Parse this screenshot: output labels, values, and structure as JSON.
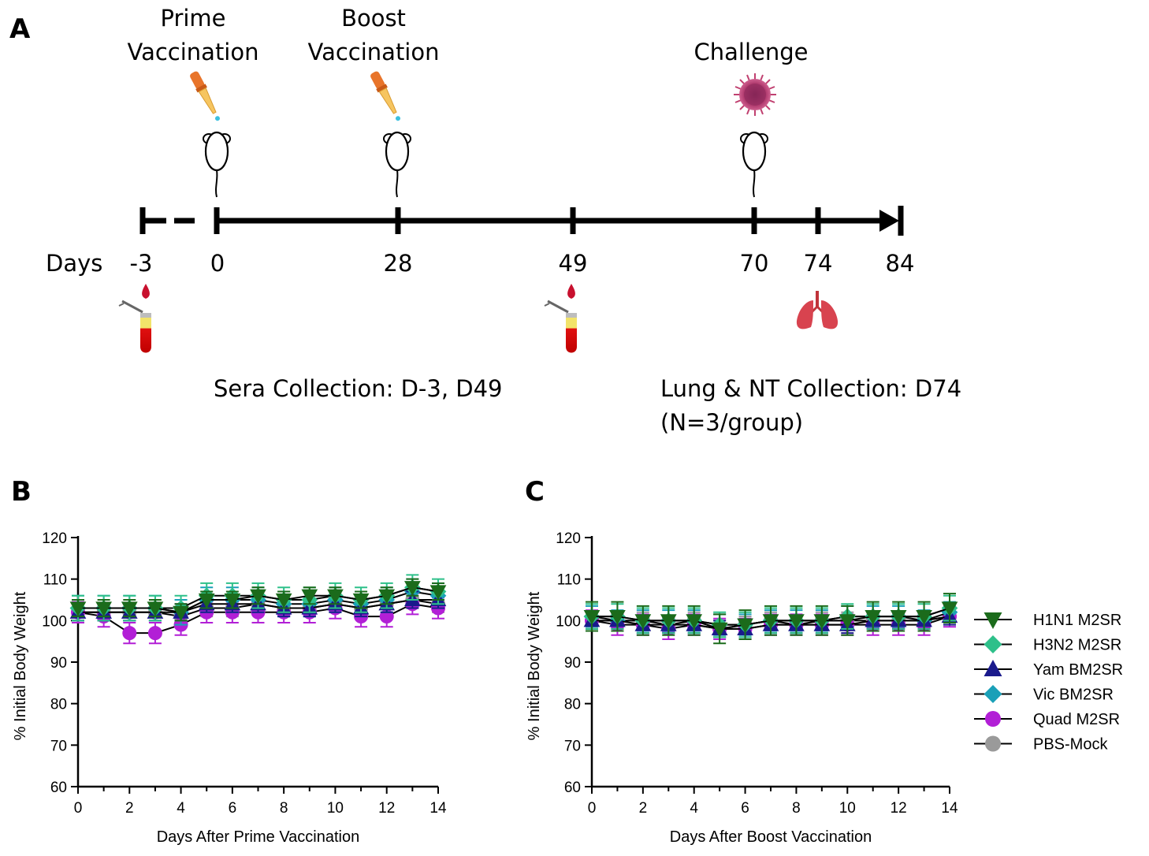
{
  "panel_a": {
    "letter": "A",
    "prime_label_1": "Prime",
    "prime_label_2": "Vaccination",
    "boost_label_1": "Boost",
    "boost_label_2": "Vaccination",
    "challenge_label": "Challenge",
    "days_label": "Days",
    "day_ticks": [
      "-3",
      "0",
      "28",
      "49",
      "70",
      "74",
      "84"
    ],
    "sera_note": "Sera Collection: D-3, D49",
    "lung_note_1": "Lung & NT Collection: D74",
    "lung_note_2": "(N=3/group)"
  },
  "colors": {
    "h1n1": "#1b6b1b",
    "h3n2": "#2ec08a",
    "yam": "#1a1a8c",
    "vic": "#1aa0b8",
    "quad": "#b21fd6",
    "mock": "#9a9a9a",
    "line": "#000000"
  },
  "chart_data": [
    {
      "panel": "B",
      "type": "line",
      "title": "",
      "xlabel": "Days After Prime Vaccination",
      "ylabel": "% Initial Body Weight",
      "xlim": [
        0,
        14
      ],
      "ylim": [
        60,
        120
      ],
      "xticks": [
        0,
        2,
        4,
        6,
        8,
        10,
        12,
        14
      ],
      "yticks": [
        60,
        70,
        80,
        90,
        100,
        110,
        120
      ],
      "x": [
        0,
        1,
        2,
        3,
        4,
        5,
        6,
        7,
        8,
        9,
        10,
        11,
        12,
        13,
        14
      ],
      "series": [
        {
          "name": "PBS-Mock",
          "key": "mock",
          "marker": "circle",
          "values": [
            102,
            102,
            102,
            102,
            101,
            103,
            103,
            104,
            103,
            103,
            104,
            103,
            104,
            105,
            104
          ],
          "err": 2
        },
        {
          "name": "Quad M2SR",
          "key": "quad",
          "marker": "circle",
          "values": [
            102,
            101,
            97,
            97,
            99,
            102,
            102,
            102,
            102,
            102,
            103,
            101,
            101,
            104,
            103
          ],
          "err": 2.5
        },
        {
          "name": "Vic BM2SR",
          "key": "vic",
          "marker": "diamond",
          "values": [
            103,
            103,
            103,
            103,
            102,
            105,
            105,
            105,
            104,
            104,
            105,
            104,
            105,
            107,
            106
          ],
          "err": 3
        },
        {
          "name": "Yam BM2SR",
          "key": "yam",
          "marker": "triangle-up",
          "values": [
            102,
            102,
            102,
            102,
            102,
            104,
            104,
            104,
            103,
            103,
            104,
            103,
            104,
            105,
            105
          ],
          "err": 2
        },
        {
          "name": "H3N2 M2SR",
          "key": "h3n2",
          "marker": "diamond",
          "values": [
            103,
            103,
            103,
            103,
            103,
            106,
            106,
            106,
            105,
            105,
            106,
            105,
            106,
            108,
            107
          ],
          "err": 3
        },
        {
          "name": "H1N1 M2SR",
          "key": "h1n1",
          "marker": "triangle-down",
          "values": [
            103,
            103,
            103,
            103,
            102,
            105,
            105,
            106,
            105,
            106,
            106,
            105,
            106,
            108,
            107
          ],
          "err": 2
        }
      ]
    },
    {
      "panel": "C",
      "type": "line",
      "title": "",
      "xlabel": "Days After Boost Vaccination",
      "ylabel": "% Initial Body Weight",
      "xlim": [
        0,
        14
      ],
      "ylim": [
        60,
        120
      ],
      "xticks": [
        0,
        2,
        4,
        6,
        8,
        10,
        12,
        14
      ],
      "yticks": [
        60,
        70,
        80,
        90,
        100,
        110,
        120
      ],
      "x": [
        0,
        1,
        2,
        3,
        4,
        5,
        6,
        7,
        8,
        9,
        10,
        11,
        12,
        13,
        14
      ],
      "series": [
        {
          "name": "PBS-Mock",
          "key": "mock",
          "marker": "circle",
          "values": [
            100,
            100,
            100,
            99,
            100,
            98,
            99,
            100,
            99,
            100,
            100,
            100,
            100,
            100,
            101
          ],
          "err": 2
        },
        {
          "name": "Quad M2SR",
          "key": "quad",
          "marker": "circle",
          "values": [
            100,
            99,
            99,
            98,
            99,
            98,
            98,
            99,
            99,
            99,
            99,
            99,
            99,
            99,
            101
          ],
          "err": 2.5
        },
        {
          "name": "Vic BM2SR",
          "key": "vic",
          "marker": "diamond",
          "values": [
            101,
            100,
            100,
            100,
            100,
            99,
            99,
            100,
            100,
            100,
            101,
            101,
            101,
            100,
            102
          ],
          "err": 2.5
        },
        {
          "name": "Yam BM2SR",
          "key": "yam",
          "marker": "triangle-up",
          "values": [
            100,
            100,
            99,
            99,
            99,
            98,
            98,
            99,
            99,
            99,
            99,
            100,
            100,
            100,
            101
          ],
          "err": 2
        },
        {
          "name": "H3N2 M2SR",
          "key": "h3n2",
          "marker": "diamond",
          "values": [
            101,
            101,
            100,
            100,
            100,
            99,
            99,
            100,
            100,
            100,
            101,
            101,
            101,
            101,
            103
          ],
          "err": 3
        },
        {
          "name": "H1N1 M2SR",
          "key": "h1n1",
          "marker": "triangle-down",
          "values": [
            101,
            101,
            100,
            100,
            100,
            98,
            99,
            100,
            100,
            100,
            100,
            101,
            101,
            101,
            103
          ],
          "err": 3.5
        }
      ]
    }
  ],
  "legend": [
    {
      "label": "H1N1 M2SR",
      "key": "h1n1",
      "marker": "triangle-down"
    },
    {
      "label": "H3N2 M2SR",
      "key": "h3n2",
      "marker": "diamond"
    },
    {
      "label": "Yam BM2SR",
      "key": "yam",
      "marker": "triangle-up"
    },
    {
      "label": "Vic BM2SR",
      "key": "vic",
      "marker": "diamond"
    },
    {
      "label": "Quad M2SR",
      "key": "quad",
      "marker": "circle"
    },
    {
      "label": "PBS-Mock",
      "key": "mock",
      "marker": "circle"
    }
  ]
}
